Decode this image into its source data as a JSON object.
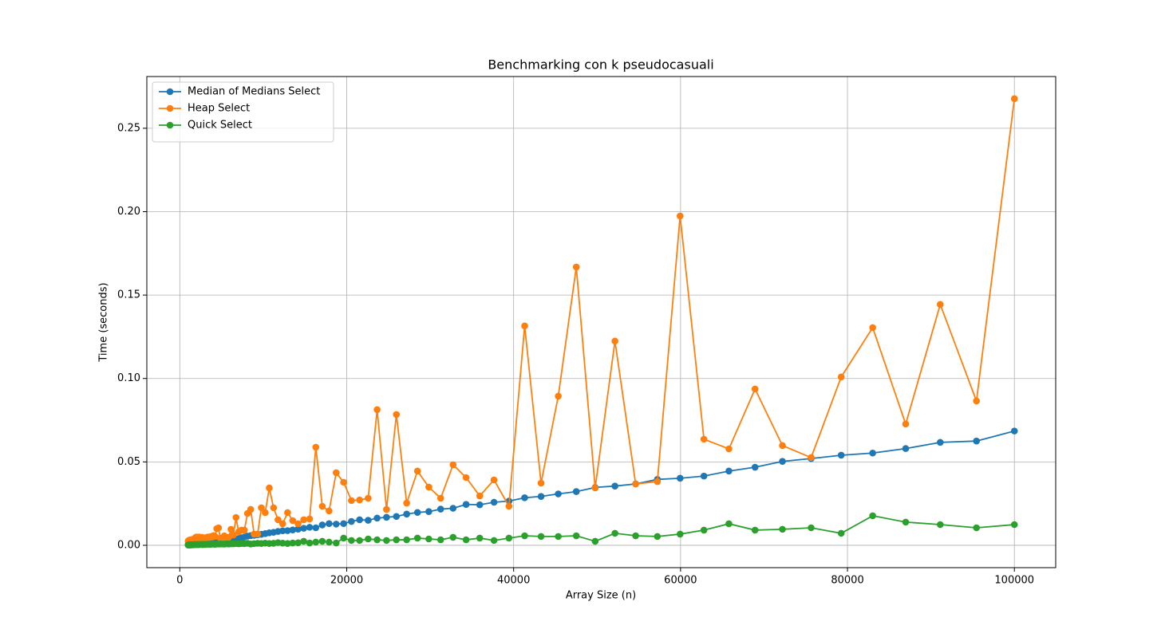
{
  "chart_data": {
    "type": "line",
    "title": "Benchmarking con k pseudocasuali",
    "xlabel": "Array Size (n)",
    "ylabel": "Time (seconds)",
    "x": [
      1000,
      1047,
      1097,
      1149,
      1204,
      1261,
      1321,
      1384,
      1450,
      1519,
      1592,
      1668,
      1747,
      1830,
      1917,
      2009,
      2104,
      2205,
      2310,
      2420,
      2535,
      2656,
      2782,
      2915,
      3053,
      3199,
      3351,
      3511,
      3678,
      3853,
      4037,
      4229,
      4430,
      4641,
      4862,
      5094,
      5336,
      5590,
      5857,
      6135,
      6428,
      6734,
      7054,
      7390,
      7742,
      8111,
      8497,
      8902,
      9326,
      9770,
      10235,
      10722,
      11233,
      11768,
      12328,
      12915,
      13530,
      14174,
      14849,
      15556,
      16297,
      17073,
      17886,
      18738,
      19630,
      20565,
      21544,
      22570,
      23644,
      24770,
      25950,
      27185,
      28480,
      29836,
      31257,
      32745,
      34304,
      35938,
      37649,
      39442,
      41320,
      43287,
      45348,
      47508,
      49770,
      52140,
      54622,
      57223,
      59948,
      62802,
      65793,
      68926,
      72208,
      75646,
      79248,
      83021,
      86974,
      91116,
      95454,
      100000
    ],
    "series": [
      {
        "name": "Median of Medians Select",
        "color": "#1f77b4",
        "values": [
          0.0004,
          0.0004,
          0.0004,
          0.0005,
          0.0005,
          0.0005,
          0.0005,
          0.0006,
          0.0006,
          0.0006,
          0.0007,
          0.0007,
          0.0007,
          0.0008,
          0.0008,
          0.0008,
          0.0009,
          0.0009,
          0.001,
          0.001,
          0.0011,
          0.0011,
          0.0012,
          0.0013,
          0.0013,
          0.0014,
          0.0015,
          0.0015,
          0.0016,
          0.0017,
          0.0018,
          0.0019,
          0.002,
          0.0021,
          0.0022,
          0.0023,
          0.0024,
          0.0025,
          0.0027,
          0.0028,
          0.003,
          0.0035,
          0.0041,
          0.0045,
          0.005,
          0.0055,
          0.0058,
          0.006,
          0.0063,
          0.0066,
          0.007,
          0.0075,
          0.0078,
          0.0083,
          0.0087,
          0.0088,
          0.0092,
          0.0097,
          0.0102,
          0.0108,
          0.0105,
          0.0122,
          0.013,
          0.0127,
          0.013,
          0.0143,
          0.0153,
          0.015,
          0.0163,
          0.0168,
          0.0173,
          0.0187,
          0.0197,
          0.0202,
          0.0217,
          0.0222,
          0.0245,
          0.0243,
          0.0258,
          0.0265,
          0.0285,
          0.0293,
          0.0308,
          0.0322,
          0.0347,
          0.0355,
          0.0368,
          0.0395,
          0.0402,
          0.0415,
          0.0445,
          0.0468,
          0.0503,
          0.052,
          0.054,
          0.0553,
          0.058,
          0.0617,
          0.0625,
          0.0685
        ]
      },
      {
        "name": "Heap Select",
        "color": "#ff7f0e",
        "values": [
          0.0025,
          0.0028,
          0.003,
          0.0027,
          0.0032,
          0.0029,
          0.0033,
          0.0031,
          0.0035,
          0.003,
          0.0036,
          0.0034,
          0.0038,
          0.0042,
          0.0048,
          0.005,
          0.0047,
          0.0045,
          0.005,
          0.0041,
          0.0046,
          0.0048,
          0.0044,
          0.0039,
          0.0045,
          0.0043,
          0.005,
          0.0047,
          0.0052,
          0.0049,
          0.0058,
          0.0053,
          0.01,
          0.0105,
          0.0043,
          0.0038,
          0.0057,
          0.0043,
          0.0048,
          0.0096,
          0.0062,
          0.0167,
          0.0081,
          0.0091,
          0.0091,
          0.0191,
          0.0215,
          0.0067,
          0.0067,
          0.0225,
          0.0196,
          0.0344,
          0.0225,
          0.0153,
          0.0129,
          0.0196,
          0.0148,
          0.0129,
          0.0153,
          0.0158,
          0.0588,
          0.0234,
          0.0206,
          0.0435,
          0.0378,
          0.0268,
          0.0272,
          0.0282,
          0.0813,
          0.0215,
          0.0784,
          0.0253,
          0.0445,
          0.0349,
          0.0282,
          0.0483,
          0.0406,
          0.0296,
          0.0392,
          0.0234,
          0.1315,
          0.0373,
          0.0894,
          0.1668,
          0.0344,
          0.1224,
          0.0368,
          0.0382,
          0.1974,
          0.0636,
          0.0578,
          0.0937,
          0.0598,
          0.0526,
          0.1009,
          0.1305,
          0.0727,
          0.1444,
          0.0865,
          0.2677
        ]
      },
      {
        "name": "Quick Select",
        "color": "#2ca02c",
        "values": [
          0.0002,
          0.0002,
          0.0003,
          0.0002,
          0.0003,
          0.0003,
          0.0002,
          0.0004,
          0.0003,
          0.0003,
          0.0004,
          0.0003,
          0.0004,
          0.0005,
          0.0004,
          0.0004,
          0.0005,
          0.0004,
          0.0005,
          0.0005,
          0.0006,
          0.0005,
          0.0004,
          0.0006,
          0.0005,
          0.0006,
          0.0007,
          0.0006,
          0.0006,
          0.0007,
          0.0007,
          0.0006,
          0.0008,
          0.0007,
          0.0008,
          0.0008,
          0.0007,
          0.0009,
          0.0008,
          0.0009,
          0.0009,
          0.001,
          0.0009,
          0.0011,
          0.001,
          0.0012,
          0.0008,
          0.001,
          0.0012,
          0.0011,
          0.0013,
          0.0011,
          0.0012,
          0.0016,
          0.0013,
          0.0011,
          0.0014,
          0.0015,
          0.0024,
          0.0014,
          0.0019,
          0.0024,
          0.0019,
          0.0014,
          0.0043,
          0.0029,
          0.0029,
          0.0038,
          0.0033,
          0.0029,
          0.0033,
          0.0033,
          0.0043,
          0.0038,
          0.0033,
          0.0048,
          0.0033,
          0.0043,
          0.0029,
          0.0043,
          0.0057,
          0.0053,
          0.0053,
          0.0057,
          0.0024,
          0.0072,
          0.0057,
          0.0053,
          0.0067,
          0.0091,
          0.0129,
          0.0091,
          0.0096,
          0.0105,
          0.0072,
          0.0177,
          0.0139,
          0.0124,
          0.0105,
          0.0124
        ]
      }
    ],
    "xlim": [
      -3950,
      104950
    ],
    "xticks": [
      0,
      20000,
      40000,
      60000,
      80000,
      100000
    ],
    "ylim": [
      -0.0134,
      0.281
    ],
    "yticks": [
      {
        "value": 0,
        "label": "0.00"
      },
      0.05,
      {
        "value": 0.1,
        "label": "0.10"
      },
      0.15,
      {
        "value": 0.2,
        "label": "0.20"
      },
      0.25
    ],
    "grid": true,
    "legend": "upper left"
  }
}
